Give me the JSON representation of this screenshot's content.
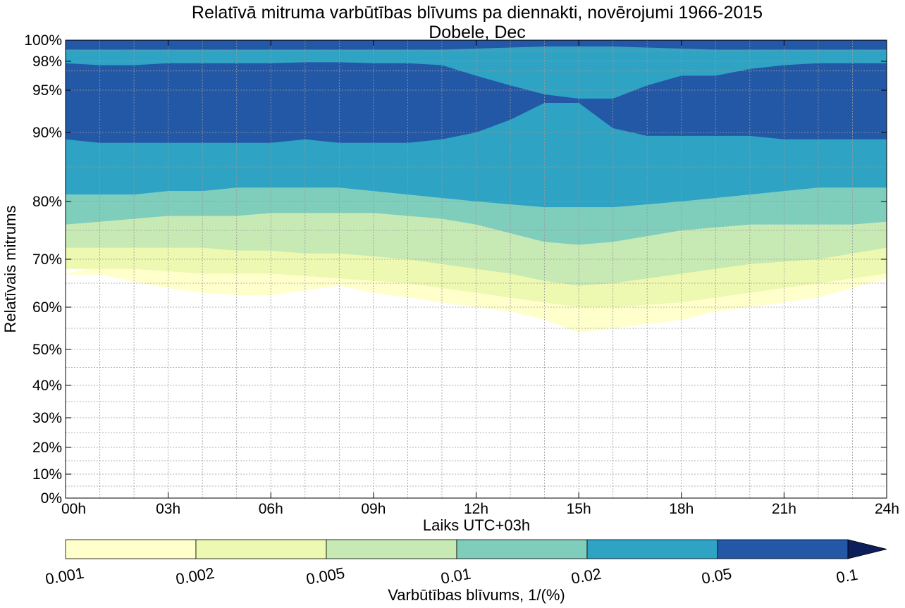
{
  "chart_data": {
    "type": "contour",
    "title": "Relatīvā mitruma varbūtības blīvums pa diennakti, novērojumi 1966-2015",
    "subtitle": "Dobele, Dec",
    "xlabel": "Laiks UTC+03h",
    "ylabel": "Relatīvais mitrums",
    "x_ticks": [
      "00h",
      "03h",
      "06h",
      "09h",
      "12h",
      "15h",
      "18h",
      "21h",
      "24h"
    ],
    "x_range_hours": [
      0,
      24
    ],
    "y_scale": "transformed humidity axis (expanded near 100%)",
    "y_ticks": [
      {
        "value": 0,
        "label": "0%"
      },
      {
        "value": 10,
        "label": "10%"
      },
      {
        "value": 20,
        "label": "20%"
      },
      {
        "value": 30,
        "label": "30%"
      },
      {
        "value": 40,
        "label": "40%"
      },
      {
        "value": 50,
        "label": "50%"
      },
      {
        "value": 60,
        "label": "60%"
      },
      {
        "value": 70,
        "label": "70%"
      },
      {
        "value": 80,
        "label": "80%"
      },
      {
        "value": 90,
        "label": "90%"
      },
      {
        "value": 95,
        "label": "95%"
      },
      {
        "value": 98,
        "label": "98%"
      },
      {
        "value": 100,
        "label": "100%"
      }
    ],
    "grid": true,
    "colorbar": {
      "label": "Varbūtības blīvums, 1/(%)",
      "levels": [
        "0.001",
        "0.002",
        "0.005",
        "0.01",
        "0.02",
        "0.05",
        "0.1"
      ],
      "colors": [
        "#ffffcc",
        "#edf8b1",
        "#c7e9b4",
        "#7fcdbb",
        "#2ea3c4",
        "#2358a6",
        "#0c1f5a"
      ],
      "extend": "max"
    },
    "bands_hours": [
      0,
      1,
      2,
      3,
      4,
      5,
      6,
      7,
      8,
      9,
      10,
      11,
      12,
      13,
      14,
      15,
      16,
      17,
      18,
      19,
      20,
      21,
      22,
      23,
      24
    ],
    "bands": [
      {
        "level": "0.001",
        "upper": [
          67,
          68.5,
          69,
          69.5,
          70,
          70.5,
          71,
          71.5,
          71.5,
          71.5,
          71,
          70.5,
          70,
          69.5,
          69,
          68.5,
          68.5,
          68.5,
          68.5,
          68,
          67.5,
          68,
          68,
          68.5,
          69
        ],
        "lower": [
          66.8,
          66.8,
          65.3,
          64,
          63,
          62.5,
          62.5,
          63.5,
          64.5,
          63,
          62,
          61,
          60,
          59,
          57,
          54,
          55,
          56,
          57,
          59,
          60,
          61,
          62,
          64,
          66
        ]
      },
      {
        "level": "0.002",
        "upper": [
          72,
          72.5,
          73,
          73.5,
          74,
          74.5,
          74.5,
          74.5,
          74.5,
          74.5,
          74,
          73.5,
          73,
          72,
          71,
          70.5,
          71,
          71.5,
          72,
          72.5,
          72,
          72.5,
          73,
          73.5,
          74
        ],
        "lower": [
          68,
          68,
          68,
          67.5,
          67,
          67,
          67,
          66.5,
          66,
          65.5,
          65,
          64,
          63,
          62,
          61,
          60,
          60,
          60.5,
          61,
          62,
          63,
          64,
          65,
          66,
          67
        ]
      },
      {
        "level": "0.005",
        "upper": [
          76,
          76.5,
          77,
          77.5,
          77.5,
          77.5,
          78,
          78,
          78,
          78,
          77.5,
          77,
          76,
          74.5,
          73,
          72.5,
          73,
          74,
          75,
          75.5,
          76,
          76,
          76,
          76,
          76.5
        ],
        "lower": [
          72,
          72,
          72,
          72,
          72,
          71.5,
          71.5,
          71,
          71,
          70.5,
          70,
          69,
          68,
          67,
          65.5,
          64.5,
          65,
          66,
          67,
          68,
          69,
          69.5,
          70,
          71,
          72
        ]
      },
      {
        "level": "0.01",
        "upper": [
          81,
          81,
          81,
          81.5,
          81.5,
          82,
          82,
          82,
          82,
          81.5,
          81,
          80.5,
          80,
          79.5,
          79,
          79,
          79,
          79.5,
          80,
          80.5,
          81,
          81.5,
          82,
          82,
          82
        ],
        "lower": [
          76,
          76.5,
          77,
          77.5,
          77.5,
          77.5,
          78,
          78,
          78,
          78,
          77.5,
          77,
          76,
          74.5,
          73,
          72.5,
          73,
          74,
          75,
          75.5,
          76,
          76,
          76,
          76,
          76.5
        ]
      },
      {
        "level": "0.02",
        "upper": [
          99.5,
          99.5,
          99.5,
          99.5,
          99.5,
          99.5,
          99.5,
          99.5,
          99.5,
          99.5,
          99.5,
          99.5,
          99.5,
          99.5,
          99.5,
          99.5,
          99.5,
          99.5,
          99.5,
          99.5,
          99.5,
          99.5,
          99.5,
          99.5,
          99.5
        ],
        "lower": [
          81,
          81,
          81,
          81.5,
          81.5,
          82,
          82,
          82,
          82,
          81.5,
          81,
          80.5,
          80,
          79.5,
          79,
          79,
          79,
          79.5,
          80,
          80.5,
          81,
          81.5,
          82,
          82,
          82
        ]
      },
      {
        "level": "0.05",
        "upper": [
          97.8,
          97.6,
          97.6,
          97.8,
          97.8,
          97.8,
          97.8,
          97.9,
          97.9,
          97.8,
          97.8,
          97.6,
          96.5,
          95.5,
          94.5,
          94,
          94,
          95.5,
          96.5,
          96.5,
          97.2,
          97.6,
          97.8,
          97.8,
          97.8
        ],
        "lower": [
          89,
          88.5,
          88.5,
          88.5,
          88.5,
          88.5,
          88.5,
          89,
          88.5,
          88.5,
          88.5,
          89,
          90,
          91.5,
          93.5,
          93.5,
          90.5,
          89.5,
          89.5,
          89.5,
          89.5,
          89,
          89,
          89,
          89
        ]
      },
      {
        "level": "0.05",
        "upper": [
          100,
          100,
          100,
          100,
          100,
          100,
          100,
          100,
          100,
          100,
          100,
          100,
          100,
          100,
          100,
          100,
          100,
          100,
          100,
          100,
          100,
          100,
          100,
          100,
          100
        ],
        "lower": [
          99.1,
          99.1,
          99.1,
          99.1,
          99.1,
          99.1,
          99.1,
          99.1,
          99.1,
          99.1,
          99.1,
          99.1,
          99.2,
          99.3,
          99.4,
          99.4,
          99.4,
          99.3,
          99.2,
          99.1,
          99.1,
          99.1,
          99.1,
          99.1,
          99.1
        ]
      }
    ]
  }
}
